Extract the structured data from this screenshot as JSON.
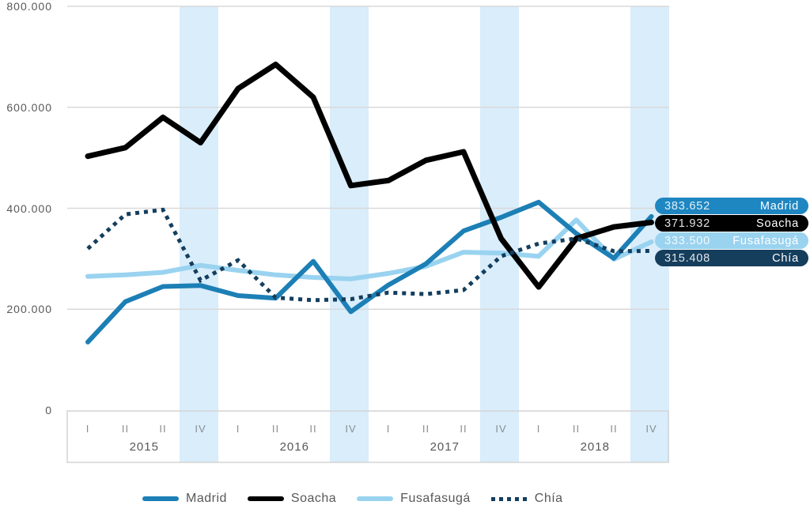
{
  "chart_data": {
    "type": "line",
    "title": "",
    "ylim": [
      0,
      800000
    ],
    "grid": "horizontal",
    "y_ticks": [
      {
        "label": "800.000",
        "value": 800000
      },
      {
        "label": "600.000",
        "value": 600000
      },
      {
        "label": "400.000",
        "value": 400000
      },
      {
        "label": "200.000",
        "value": 200000
      },
      {
        "label": "0",
        "value": 0
      }
    ],
    "x_years": [
      {
        "label": "2015",
        "quarters": [
          "I",
          "II",
          "II",
          "IV"
        ]
      },
      {
        "label": "2016",
        "quarters": [
          "I",
          "II",
          "II",
          "IV"
        ]
      },
      {
        "label": "2017",
        "quarters": [
          "I",
          "II",
          "II",
          "IV"
        ]
      },
      {
        "label": "2018",
        "quarters": [
          "I",
          "II",
          "II",
          "IV"
        ]
      }
    ],
    "highlight": {
      "quarter": "IV",
      "band_color": "#d9edfb"
    },
    "series": [
      {
        "name": "Madrid",
        "color": "#1c7fb5",
        "style": "solid",
        "width": 6,
        "values": [
          135000,
          215000,
          245000,
          247000,
          227000,
          222000,
          295000,
          195000,
          248000,
          290000,
          355000,
          382000,
          412000,
          350000,
          301000,
          383652
        ]
      },
      {
        "name": "Soacha",
        "color": "#000000",
        "style": "solid",
        "width": 7,
        "values": [
          503000,
          520000,
          580000,
          530000,
          637000,
          685000,
          620000,
          445000,
          455000,
          495000,
          512000,
          340000,
          244000,
          340000,
          363000,
          371932
        ]
      },
      {
        "name": "Fusafasugá",
        "color": "#9ad3f0",
        "style": "solid",
        "width": 6,
        "values": [
          265000,
          268000,
          273000,
          287000,
          277000,
          268000,
          263000,
          260000,
          271000,
          285000,
          313000,
          311000,
          305000,
          377000,
          299000,
          333500
        ]
      },
      {
        "name": "Chía",
        "color": "#143e5e",
        "style": "dotted",
        "width": 5,
        "values": [
          320000,
          388000,
          397000,
          257000,
          297000,
          223000,
          218000,
          220000,
          233000,
          230000,
          238000,
          305000,
          330000,
          340000,
          315000,
          315408
        ]
      }
    ],
    "end_labels": [
      {
        "value_label": "383.652",
        "name": "Madrid",
        "bg": "#1e86c1"
      },
      {
        "value_label": "371.932",
        "name": "Soacha",
        "bg": "#000000"
      },
      {
        "value_label": "333.500",
        "name": "Fusafasugá",
        "bg": "#9ad3f0"
      },
      {
        "value_label": "315.408",
        "name": "Chía",
        "bg": "#153d5c"
      }
    ],
    "legend": [
      {
        "label": "Madrid",
        "color": "#1c7fb5",
        "style": "solid"
      },
      {
        "label": "Soacha",
        "color": "#000000",
        "style": "solid"
      },
      {
        "label": "Fusafasugá",
        "color": "#9ad3f0",
        "style": "solid"
      },
      {
        "label": "Chía",
        "color": "#143e5e",
        "style": "dotted"
      }
    ],
    "colors": {
      "gridline": "#d9d9d9",
      "axis_box_border": "#d4d4d4",
      "tick_text": "#8a8c8f",
      "label_text": "#57585a"
    }
  }
}
